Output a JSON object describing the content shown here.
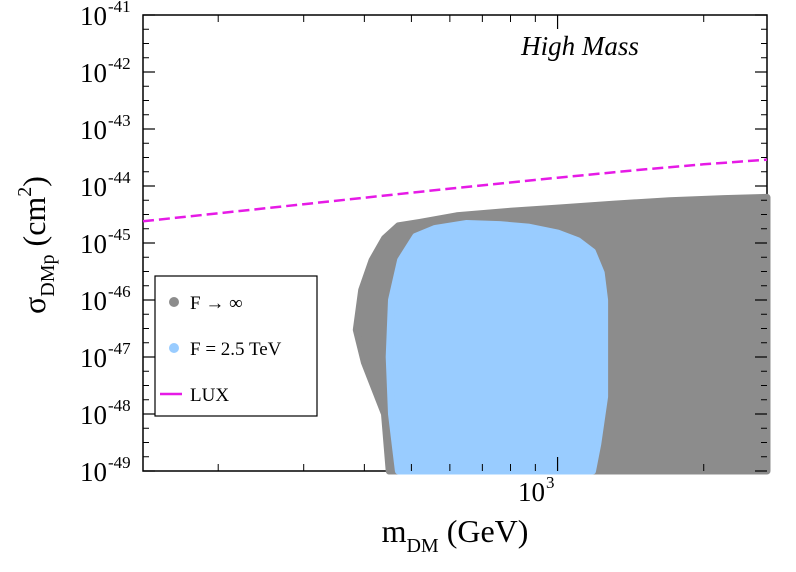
{
  "chart_data": {
    "type": "scatter",
    "x_scale": "log",
    "y_scale": "log",
    "xlim": [
      140,
      2700
    ],
    "ylim": [
      1e-49,
      1e-41
    ],
    "annotation": "High Mass",
    "xlabel": {
      "main": "m",
      "sub": "DM",
      "tail": " (GeV)"
    },
    "ylabel": {
      "main": "σ",
      "sub": "DMp",
      "mid": " (cm",
      "sup": "2",
      "end": ")"
    },
    "x_tick_label": {
      "base": "10",
      "exp": "3",
      "value": 1000
    },
    "y_ticks": [
      {
        "base": "10",
        "exp": "-41",
        "value": 1e-41
      },
      {
        "base": "10",
        "exp": "-42",
        "value": 1e-42
      },
      {
        "base": "10",
        "exp": "-43",
        "value": 1e-43
      },
      {
        "base": "10",
        "exp": "-44",
        "value": 1e-44
      },
      {
        "base": "10",
        "exp": "-45",
        "value": 1e-45
      },
      {
        "base": "10",
        "exp": "-46",
        "value": 1e-46
      },
      {
        "base": "10",
        "exp": "-47",
        "value": 1e-47
      },
      {
        "base": "10",
        "exp": "-48",
        "value": 1e-48
      },
      {
        "base": "10",
        "exp": "-49",
        "value": 1e-49
      }
    ],
    "x_minor_ticks": [
      200,
      300,
      400,
      500,
      600,
      700,
      800,
      900,
      2000
    ],
    "legend": {
      "position": "lower-left",
      "entries": [
        {
          "label": "F → ∞",
          "marker": "dot",
          "color": "#8c8c8c"
        },
        {
          "label": "F = 2.5 TeV",
          "marker": "dot",
          "color": "#99ccff"
        },
        {
          "label": "LUX",
          "marker": "dashed-line",
          "color": "#e61ae6"
        }
      ]
    },
    "series": [
      {
        "name": "F → ∞",
        "kind": "region",
        "color": "#8c8c8c",
        "outline": [
          [
            470,
            2e-45
          ],
          [
            520,
            2.3e-45
          ],
          [
            620,
            3e-45
          ],
          [
            800,
            3.6e-45
          ],
          [
            1000,
            4.1e-45
          ],
          [
            1300,
            4.8e-45
          ],
          [
            1700,
            5.5e-45
          ],
          [
            2200,
            6e-45
          ],
          [
            2700,
            6.3e-45
          ],
          [
            2700,
            1e-49
          ],
          [
            450,
            1e-49
          ],
          [
            440,
            1e-48
          ],
          [
            400,
            8e-48
          ],
          [
            385,
            3e-47
          ],
          [
            395,
            1.5e-46
          ],
          [
            415,
            5e-46
          ],
          [
            440,
            1.2e-45
          ]
        ]
      },
      {
        "name": "F = 2.5 TeV",
        "kind": "region",
        "color": "#99ccff",
        "outline": [
          [
            510,
            1.3e-45
          ],
          [
            560,
            1.8e-45
          ],
          [
            650,
            2.2e-45
          ],
          [
            760,
            2.1e-45
          ],
          [
            870,
            1.9e-45
          ],
          [
            1000,
            1.5e-45
          ],
          [
            1100,
            1.1e-45
          ],
          [
            1180,
            7e-46
          ],
          [
            1230,
            3e-46
          ],
          [
            1250,
            1e-46
          ],
          [
            1250,
            2e-48
          ],
          [
            1210,
            3e-49
          ],
          [
            1180,
            1e-49
          ],
          [
            470,
            1e-49
          ],
          [
            455,
            1e-48
          ],
          [
            450,
            1e-47
          ],
          [
            455,
            1e-46
          ],
          [
            475,
            5e-46
          ]
        ]
      },
      {
        "name": "LUX",
        "kind": "line",
        "style": "dashed",
        "color": "#e61ae6",
        "x": [
          140,
          300,
          600,
          1000,
          1500,
          2000,
          2700
        ],
        "y": [
          2.4e-45,
          4.8e-45,
          9e-45,
          1.4e-44,
          1.95e-44,
          2.4e-44,
          2.9e-44
        ]
      }
    ]
  }
}
